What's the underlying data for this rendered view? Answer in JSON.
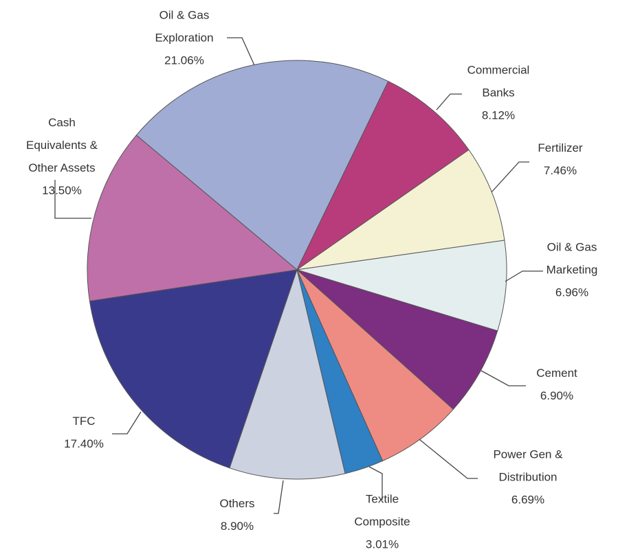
{
  "chart_data": {
    "type": "pie",
    "categories": [
      "Oil & Gas Exploration",
      "Commercial Banks",
      "Fertilizer",
      "Oil & Gas Marketing",
      "Cement",
      "Power Gen & Distribution",
      "Textile Composite",
      "Others",
      "TFC",
      "Cash Equivalents & Other Assets"
    ],
    "values": [
      21.06,
      8.12,
      7.46,
      6.96,
      6.9,
      6.69,
      3.01,
      8.9,
      17.4,
      13.5
    ],
    "value_labels": [
      "21.06%",
      "8.12%",
      "7.46%",
      "6.96%",
      "6.90%",
      "6.69%",
      "3.01%",
      "8.90%",
      "17.40%",
      "13.50%"
    ],
    "colors": [
      "#a0acd4",
      "#b83c7c",
      "#f5f2d4",
      "#e4eeee",
      "#7c2e80",
      "#ee8c84",
      "#3080c4",
      "#ccd2e0",
      "#3a3a8c",
      "#c070a8"
    ]
  }
}
